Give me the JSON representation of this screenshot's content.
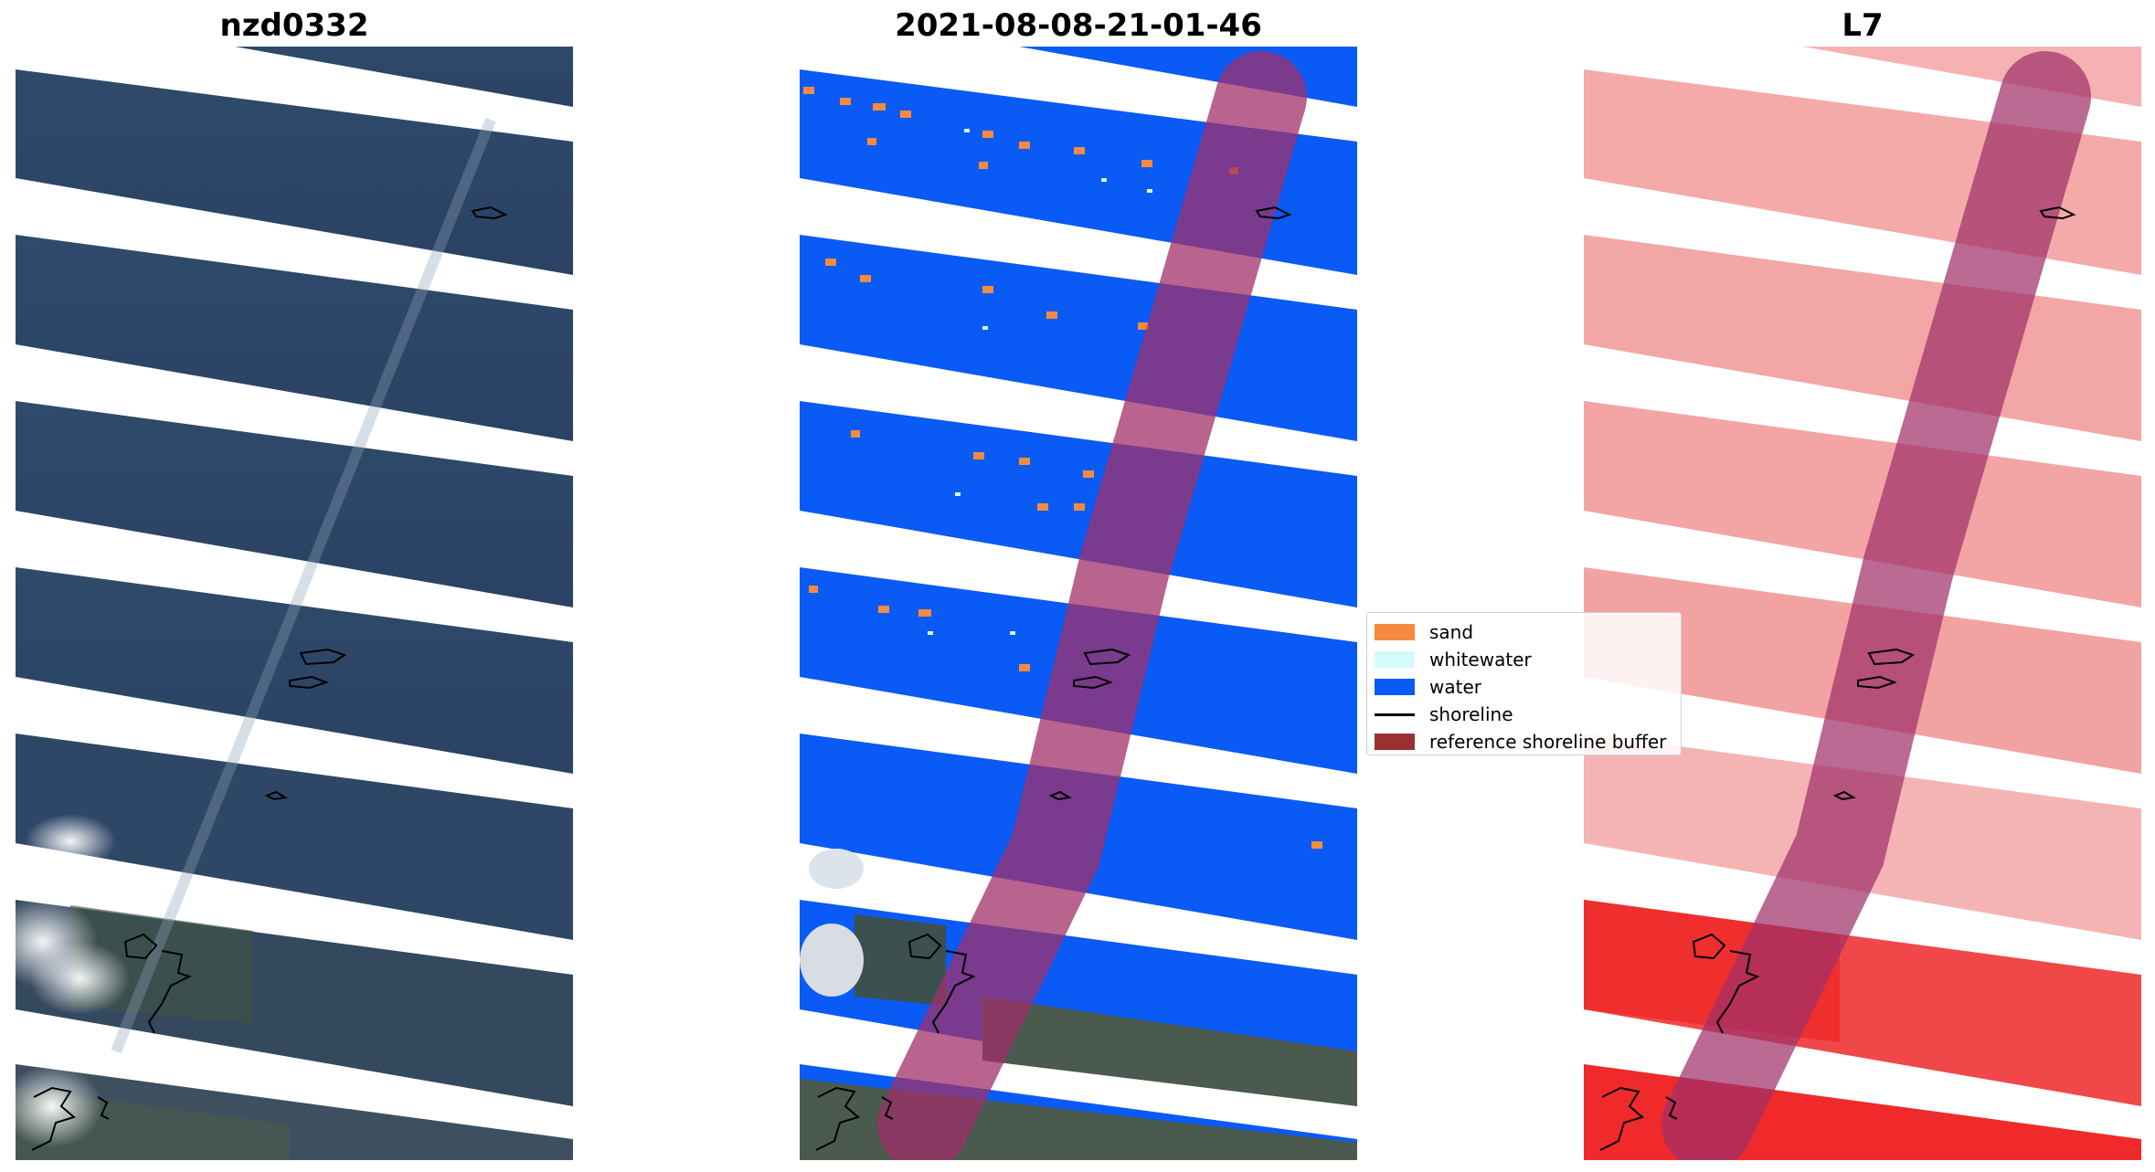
{
  "panels": [
    {
      "title": "nzd0332",
      "kind": "rgb"
    },
    {
      "title": "2021-08-08-21-01-46",
      "kind": "classified"
    },
    {
      "title": "L7",
      "kind": "index"
    }
  ],
  "legend": {
    "items": [
      {
        "label": "sand",
        "color": "#f68a3e",
        "type": "patch"
      },
      {
        "label": "whitewater",
        "color": "#d2fcfc",
        "type": "patch"
      },
      {
        "label": "water",
        "color": "#0a5af5",
        "type": "patch"
      },
      {
        "label": "shoreline",
        "color": "#000000",
        "type": "line"
      },
      {
        "label": "reference shoreline buffer",
        "color": "#9a3030",
        "type": "patch"
      }
    ]
  },
  "colors": {
    "rgb_water": "#2b4568",
    "classified_water": "#0a5af5",
    "index_water": "#f7b5b5",
    "buffer": "#a0306a"
  }
}
